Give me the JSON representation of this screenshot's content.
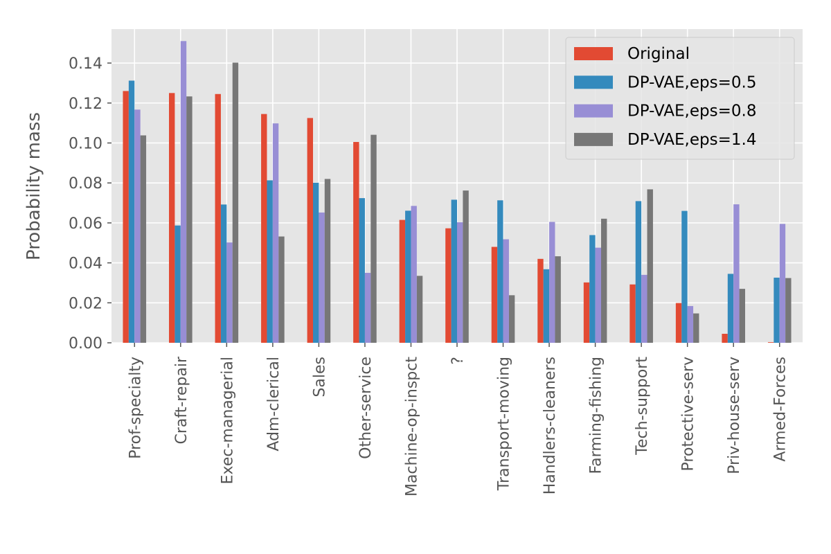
{
  "colors": {
    "plot_background": "#e5e5e5",
    "grid": "#ffffff",
    "tick_text": "#555555"
  },
  "chart_data": {
    "type": "bar",
    "title": "",
    "xlabel": "",
    "ylabel": "Probability mass",
    "ylim": [
      0,
      0.157
    ],
    "yticks": [
      "0.00",
      "0.02",
      "0.04",
      "0.06",
      "0.08",
      "0.10",
      "0.12",
      "0.14"
    ],
    "grid": true,
    "legend_position": "top-right",
    "categories": [
      "Prof-specialty",
      "Craft-repair",
      "Exec-managerial",
      "Adm-clerical",
      "Sales",
      "Other-service",
      "Machine-op-inspct",
      "?",
      "Transport-moving",
      "Handlers-cleaners",
      "Farming-fishing",
      "Tech-support",
      "Protective-serv",
      "Priv-house-serv",
      "Armed-Forces"
    ],
    "series": [
      {
        "name": "Original",
        "color": "#e24a33",
        "values": [
          0.126,
          0.125,
          0.1245,
          0.1145,
          0.1125,
          0.1005,
          0.0615,
          0.0573,
          0.048,
          0.042,
          0.0302,
          0.0292,
          0.0199,
          0.0045,
          0.0003
        ]
      },
      {
        "name": "DP-VAE,eps=0.5",
        "color": "#348abd",
        "values": [
          0.1312,
          0.0587,
          0.0692,
          0.0813,
          0.0801,
          0.0724,
          0.0661,
          0.0716,
          0.0713,
          0.0368,
          0.0539,
          0.0709,
          0.066,
          0.0345,
          0.0326
        ]
      },
      {
        "name": "DP-VAE,eps=0.8",
        "color": "#988ed5",
        "values": [
          0.1167,
          0.151,
          0.0502,
          0.1098,
          0.0652,
          0.035,
          0.0685,
          0.0603,
          0.0518,
          0.0605,
          0.0476,
          0.034,
          0.0184,
          0.0693,
          0.0595
        ]
      },
      {
        "name": "DP-VAE,eps=1.4",
        "color": "#777777",
        "values": [
          0.1038,
          0.1233,
          0.1402,
          0.0532,
          0.082,
          0.1041,
          0.0335,
          0.0762,
          0.0238,
          0.0433,
          0.0621,
          0.0768,
          0.0147,
          0.027,
          0.0324
        ]
      }
    ]
  }
}
